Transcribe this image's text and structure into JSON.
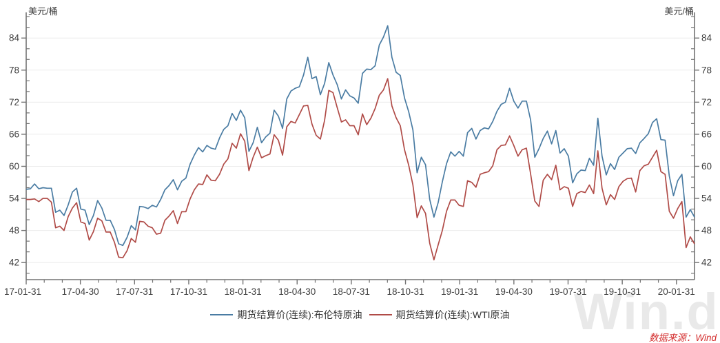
{
  "header": {
    "unit_left": "美元/桶",
    "unit_right": "美元/桶"
  },
  "legend": {
    "items": [
      {
        "label": "期货结算价(连续):布伦特原油",
        "color": "#4a7ca3"
      },
      {
        "label": "期货结算价(连续):WTI原油",
        "color": "#b04b47"
      }
    ]
  },
  "footer": {
    "source": "数据来源：Wind",
    "watermark": "Win.d"
  },
  "colors": {
    "brent_line": "#4a7ca3",
    "wti_line": "#b04b47",
    "axis": "#737373",
    "grid": "#ebebeb",
    "tick_label": "#3d3d3d",
    "source_text": "#d43030",
    "watermark_gray": "#e9e9e9",
    "background": "#ffffff"
  },
  "chart_data": {
    "type": "line",
    "title": "",
    "ylabel": "美元/桶",
    "xlabel": "",
    "ylim": [
      38.8,
      88.8
    ],
    "y_major_ticks": [
      42,
      48,
      54,
      60,
      66,
      72,
      78,
      84
    ],
    "y_minor_step": 2,
    "grid": "horizontal-major",
    "legend_position": "bottom-center",
    "x_months_span": 37,
    "x_tick_labels": [
      "17-01-31",
      "17-04-30",
      "17-07-31",
      "17-10-31",
      "18-01-31",
      "18-04-30",
      "18-07-31",
      "18-10-31",
      "19-01-31",
      "19-04-30",
      "19-07-31",
      "19-10-31",
      "20-01-31"
    ],
    "sampling": "weekly settlement prices, 2017-01-31 to 2020-03-06",
    "series": [
      {
        "name": "期货结算价(连续):布伦特原油",
        "color": "#4a7ca3",
        "values": [
          55.7,
          55.8,
          56.7,
          55.8,
          56.0,
          55.9,
          55.9,
          51.4,
          51.8,
          50.8,
          52.8,
          55.2,
          55.9,
          52.0,
          51.8,
          49.1,
          50.8,
          53.6,
          52.2,
          49.9,
          49.9,
          48.2,
          45.5,
          45.2,
          46.7,
          48.9,
          48.1,
          52.5,
          52.4,
          52.1,
          52.7,
          52.4,
          53.8,
          55.6,
          56.4,
          57.5,
          55.6,
          57.2,
          57.8,
          60.4,
          62.1,
          63.5,
          62.7,
          63.9,
          63.4,
          63.2,
          65.3,
          66.9,
          67.6,
          69.9,
          68.6,
          70.5,
          69.1,
          62.8,
          64.4,
          67.3,
          64.4,
          65.5,
          66.2,
          70.5,
          69.4,
          67.1,
          72.6,
          74.1,
          74.6,
          74.9,
          77.1,
          80.4,
          76.4,
          76.8,
          73.4,
          75.5,
          79.4,
          77.1,
          75.3,
          72.6,
          74.3,
          73.2,
          72.8,
          71.8,
          77.4,
          78.2,
          78.1,
          78.8,
          82.7,
          84.2,
          86.3,
          80.4,
          77.6,
          77.0,
          72.8,
          70.2,
          66.8,
          58.8,
          61.7,
          60.3,
          53.8,
          50.5,
          53.2,
          57.1,
          60.5,
          62.7,
          61.9,
          62.8,
          61.9,
          66.3,
          67.1,
          65.1,
          66.7,
          67.2,
          67.0,
          68.4,
          70.3,
          71.6,
          72.0,
          74.6,
          72.2,
          70.9,
          72.2,
          72.2,
          68.7,
          61.7,
          63.3,
          65.2,
          66.6,
          64.2,
          66.7,
          62.5,
          63.3,
          61.9,
          56.9,
          58.6,
          59.3,
          59.2,
          61.5,
          60.2,
          69.0,
          61.9,
          58.4,
          60.5,
          59.4,
          61.7,
          62.5,
          63.3,
          63.4,
          62.4,
          64.4,
          65.2,
          66.1,
          68.2,
          68.9,
          65.0,
          64.9,
          58.2,
          54.5,
          57.3,
          58.5,
          50.5,
          51.9,
          50.5
        ]
      },
      {
        "name": "期货结算价(连续):WTI原油",
        "color": "#b04b47",
        "values": [
          53.8,
          53.8,
          53.9,
          53.4,
          54.0,
          54.0,
          53.3,
          48.5,
          48.8,
          48.0,
          50.6,
          52.2,
          53.2,
          49.6,
          49.3,
          46.2,
          47.8,
          50.3,
          49.8,
          47.7,
          47.7,
          45.8,
          43.0,
          42.9,
          44.2,
          46.5,
          45.8,
          49.7,
          49.6,
          48.8,
          48.5,
          47.3,
          47.5,
          49.9,
          50.7,
          51.7,
          49.3,
          51.5,
          51.5,
          53.9,
          55.6,
          56.7,
          56.6,
          58.4,
          57.4,
          57.3,
          58.5,
          60.4,
          61.4,
          64.3,
          63.4,
          66.1,
          64.7,
          59.2,
          61.7,
          63.6,
          61.6,
          62.0,
          62.3,
          65.9,
          64.9,
          62.1,
          67.4,
          68.4,
          68.1,
          69.7,
          71.3,
          71.4,
          67.9,
          65.8,
          65.1,
          68.6,
          74.2,
          73.8,
          71.0,
          68.3,
          68.7,
          67.6,
          67.6,
          65.9,
          69.8,
          67.8,
          69.0,
          70.8,
          73.3,
          74.3,
          76.4,
          71.3,
          69.1,
          67.6,
          63.1,
          60.2,
          56.5,
          50.4,
          52.6,
          51.2,
          45.6,
          42.5,
          45.3,
          48.0,
          51.6,
          53.7,
          53.7,
          52.7,
          52.5,
          57.3,
          57.0,
          56.1,
          58.5,
          58.8,
          59.0,
          60.1,
          63.1,
          63.9,
          64.0,
          65.7,
          63.9,
          61.9,
          63.1,
          63.4,
          58.6,
          53.5,
          52.5,
          57.4,
          58.5,
          57.5,
          60.2,
          55.6,
          56.2,
          55.9,
          52.5,
          54.9,
          55.3,
          55.1,
          56.5,
          54.9,
          62.9,
          55.9,
          52.8,
          54.7,
          53.8,
          56.2,
          57.2,
          57.7,
          57.8,
          55.2,
          59.2,
          60.1,
          60.4,
          61.7,
          63.0,
          59.0,
          58.5,
          51.6,
          50.3,
          52.1,
          53.4,
          44.8,
          46.8,
          45.5
        ]
      }
    ]
  }
}
